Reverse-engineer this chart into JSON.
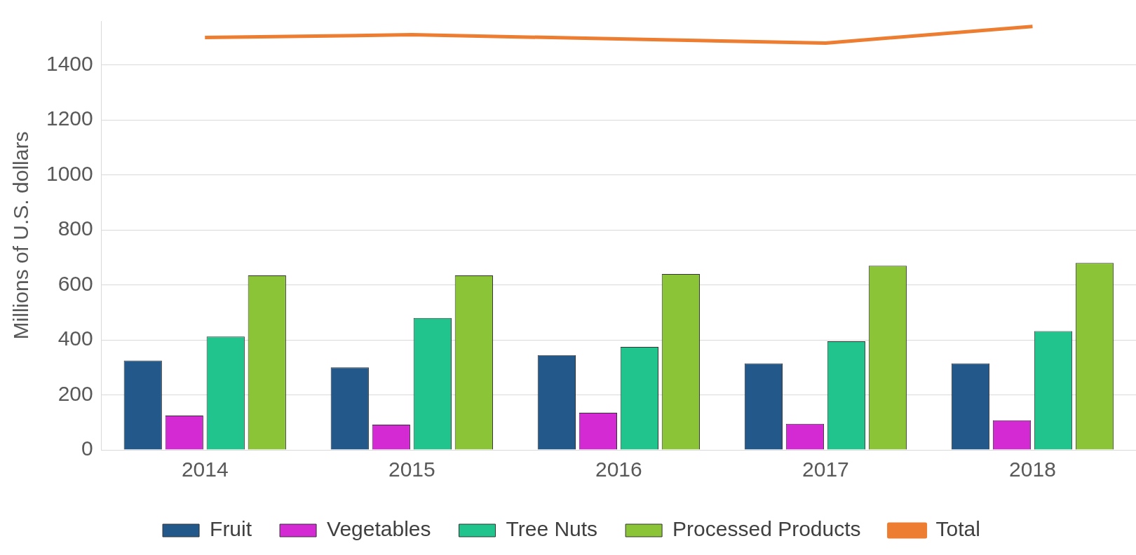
{
  "chart_data": {
    "type": "bar",
    "ylabel": "Millions of U.S. dollars",
    "categories": [
      "2014",
      "2015",
      "2016",
      "2017",
      "2018"
    ],
    "series": [
      {
        "name": "Fruit",
        "color": "#22588a",
        "values": [
          325,
          300,
          345,
          315,
          315
        ]
      },
      {
        "name": "Vegetables",
        "color": "#d42ad4",
        "values": [
          125,
          92,
          135,
          95,
          108
        ]
      },
      {
        "name": "Tree Nuts",
        "color": "#20c48c",
        "values": [
          412,
          480,
          375,
          395,
          432
        ]
      },
      {
        "name": "Processed Products",
        "color": "#8cc437",
        "values": [
          635,
          635,
          640,
          670,
          680
        ]
      },
      {
        "name": "Total",
        "type": "line",
        "color": "#ed7d31",
        "values": [
          1500,
          1510,
          1495,
          1480,
          1540
        ]
      }
    ],
    "ylim": [
      0,
      1560
    ],
    "yticks": [
      0,
      200,
      400,
      600,
      800,
      1000,
      1200,
      1400
    ],
    "grid": "y",
    "legend": "bottom",
    "marker": "none"
  }
}
